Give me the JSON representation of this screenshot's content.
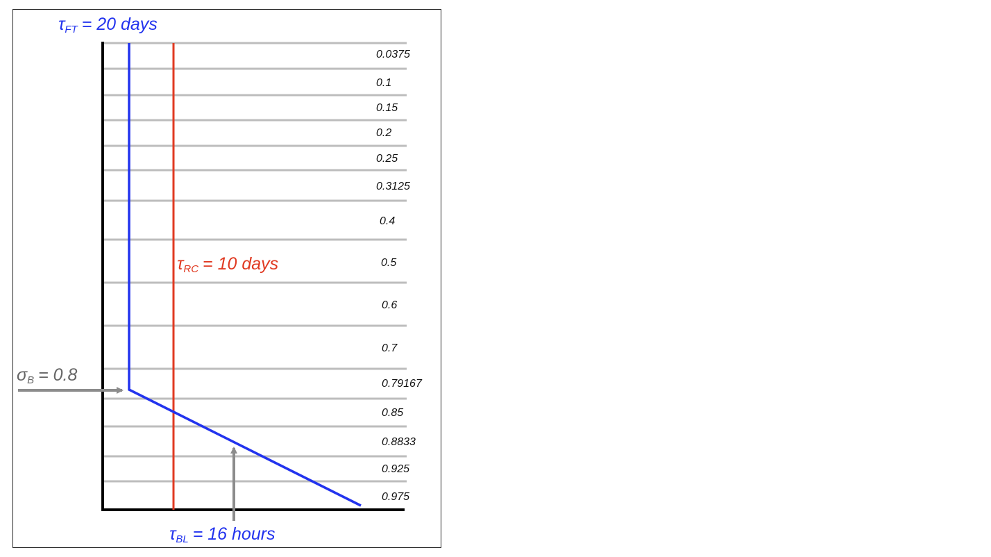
{
  "levels": [
    "0.0375",
    "0.1",
    "0.15",
    "0.2",
    "0.25",
    "0.3125",
    "0.4",
    "0.5",
    "0.6",
    "0.7",
    "0.79167",
    "0.85",
    "0.8833",
    "0.925",
    "0.975"
  ],
  "annotations": {
    "tau_ft": {
      "symbol": "τ",
      "subscript": "FT",
      "value": "= 20 days",
      "color": "#2233ee"
    },
    "tau_rc": {
      "symbol": "τ",
      "subscript": "RC",
      "value": "= 10 days",
      "color": "#e03a22"
    },
    "sigma_b": {
      "symbol": "σ",
      "subscript": "B",
      "value": "= 0.8",
      "color": "#666666"
    },
    "tau_bl": {
      "symbol": "τ",
      "subscript": "BL",
      "value": "= 16 hours",
      "color": "#2233ee"
    }
  },
  "colors": {
    "axis": "#000000",
    "gridline": "#bdbdbd",
    "arrow": "#8c8c8c",
    "level_text": "#111111"
  }
}
